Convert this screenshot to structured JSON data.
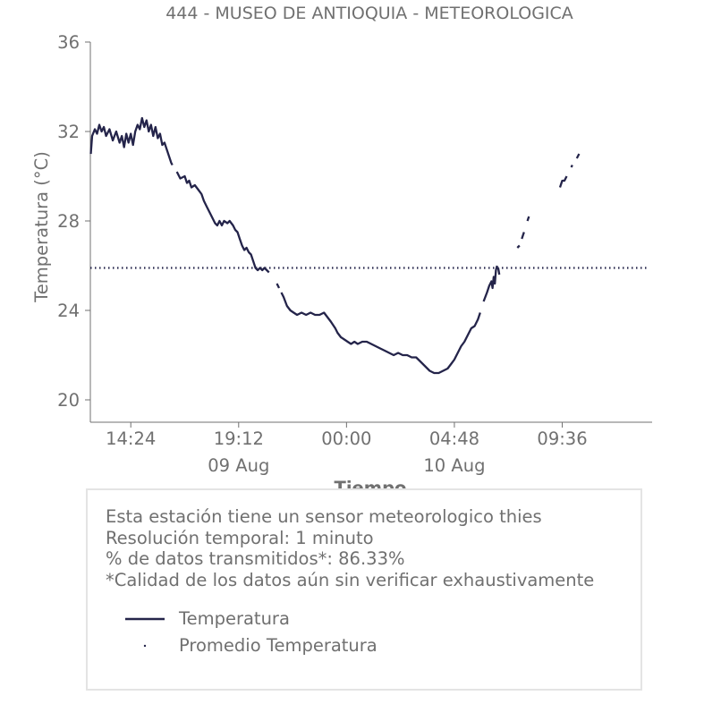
{
  "chart_data": {
    "type": "line",
    "title": "444 - MUSEO DE ANTIOQUIA - METEOROLOGICA",
    "xlabel": "Tiempo",
    "ylabel": "Temperatura (°C)",
    "ylim": [
      19,
      36
    ],
    "xlim_hours": [
      12.6,
      37.6
    ],
    "y_ticks": [
      20,
      24,
      28,
      32,
      36
    ],
    "x_ticks": [
      {
        "hour": 14.4,
        "label": "14:24",
        "date": ""
      },
      {
        "hour": 19.2,
        "label": "19:12",
        "date": "09 Aug"
      },
      {
        "hour": 24.0,
        "label": "00:00",
        "date": ""
      },
      {
        "hour": 28.8,
        "label": "04:48",
        "date": "10 Aug"
      },
      {
        "hour": 33.6,
        "label": "09:36",
        "date": ""
      }
    ],
    "grid": false,
    "colors": {
      "series": "#24244a",
      "text": "#707070",
      "axis": "#707070",
      "box_border": "#e4e4e4"
    },
    "series": [
      {
        "name": "Temperatura",
        "style": "solid",
        "segments": [
          [
            [
              12.62,
              31.0
            ],
            [
              12.68,
              31.8
            ],
            [
              12.8,
              32.1
            ],
            [
              12.9,
              31.9
            ],
            [
              13.0,
              32.3
            ],
            [
              13.1,
              32.0
            ],
            [
              13.2,
              32.2
            ],
            [
              13.3,
              31.8
            ],
            [
              13.45,
              32.1
            ],
            [
              13.6,
              31.6
            ],
            [
              13.75,
              32.0
            ],
            [
              13.9,
              31.5
            ],
            [
              14.0,
              31.8
            ],
            [
              14.1,
              31.3
            ],
            [
              14.2,
              31.9
            ],
            [
              14.3,
              31.5
            ],
            [
              14.4,
              31.9
            ],
            [
              14.5,
              31.4
            ],
            [
              14.6,
              32.0
            ],
            [
              14.7,
              32.3
            ],
            [
              14.8,
              32.1
            ],
            [
              14.9,
              32.6
            ],
            [
              15.0,
              32.2
            ],
            [
              15.1,
              32.5
            ],
            [
              15.2,
              32.0
            ],
            [
              15.3,
              32.3
            ],
            [
              15.4,
              31.8
            ],
            [
              15.5,
              32.2
            ],
            [
              15.6,
              31.7
            ],
            [
              15.7,
              31.9
            ],
            [
              15.8,
              31.4
            ],
            [
              15.9,
              31.5
            ],
            [
              16.0,
              31.2
            ],
            [
              16.1,
              30.9
            ],
            [
              16.2,
              30.6
            ],
            [
              16.25,
              30.5
            ]
          ],
          [
            [
              16.45,
              30.2
            ],
            [
              16.6,
              29.9
            ],
            [
              16.8,
              30.0
            ],
            [
              16.9,
              29.7
            ],
            [
              17.0,
              29.8
            ],
            [
              17.1,
              29.5
            ],
            [
              17.25,
              29.6
            ],
            [
              17.4,
              29.4
            ],
            [
              17.55,
              29.2
            ],
            [
              17.65,
              28.9
            ],
            [
              17.8,
              28.6
            ],
            [
              17.95,
              28.3
            ],
            [
              18.05,
              28.1
            ],
            [
              18.15,
              27.9
            ],
            [
              18.25,
              27.8
            ],
            [
              18.35,
              28.0
            ],
            [
              18.45,
              27.8
            ],
            [
              18.55,
              28.0
            ],
            [
              18.7,
              27.9
            ],
            [
              18.8,
              28.0
            ],
            [
              18.95,
              27.8
            ],
            [
              19.05,
              27.6
            ],
            [
              19.15,
              27.5
            ],
            [
              19.25,
              27.2
            ],
            [
              19.35,
              26.9
            ],
            [
              19.45,
              26.7
            ],
            [
              19.55,
              26.8
            ],
            [
              19.65,
              26.6
            ],
            [
              19.75,
              26.5
            ],
            [
              19.85,
              26.2
            ],
            [
              19.95,
              25.9
            ],
            [
              20.05,
              25.8
            ],
            [
              20.15,
              25.9
            ],
            [
              20.25,
              25.8
            ],
            [
              20.35,
              25.9
            ],
            [
              20.45,
              25.8
            ],
            [
              20.55,
              25.7
            ]
          ],
          [
            [
              20.9,
              25.2
            ],
            [
              21.0,
              25.0
            ]
          ],
          [
            [
              21.1,
              24.8
            ],
            [
              21.2,
              24.6
            ],
            [
              21.35,
              24.2
            ],
            [
              21.5,
              24.0
            ],
            [
              21.65,
              23.9
            ],
            [
              21.8,
              23.8
            ],
            [
              22.0,
              23.9
            ],
            [
              22.2,
              23.8
            ],
            [
              22.4,
              23.9
            ],
            [
              22.6,
              23.8
            ],
            [
              22.8,
              23.8
            ],
            [
              23.0,
              23.9
            ],
            [
              23.15,
              23.7
            ],
            [
              23.3,
              23.5
            ],
            [
              23.5,
              23.2
            ],
            [
              23.6,
              23.0
            ],
            [
              23.75,
              22.8
            ],
            [
              23.9,
              22.7
            ],
            [
              24.05,
              22.6
            ],
            [
              24.2,
              22.5
            ],
            [
              24.35,
              22.6
            ],
            [
              24.5,
              22.5
            ],
            [
              24.7,
              22.6
            ],
            [
              24.9,
              22.6
            ],
            [
              25.1,
              22.5
            ],
            [
              25.3,
              22.4
            ],
            [
              25.5,
              22.3
            ],
            [
              25.7,
              22.2
            ],
            [
              25.9,
              22.1
            ],
            [
              26.1,
              22.0
            ],
            [
              26.3,
              22.1
            ],
            [
              26.5,
              22.0
            ],
            [
              26.7,
              22.0
            ],
            [
              26.9,
              21.9
            ],
            [
              27.1,
              21.9
            ],
            [
              27.3,
              21.7
            ],
            [
              27.5,
              21.5
            ],
            [
              27.7,
              21.3
            ],
            [
              27.9,
              21.2
            ],
            [
              28.1,
              21.2
            ],
            [
              28.3,
              21.3
            ],
            [
              28.5,
              21.4
            ],
            [
              28.65,
              21.6
            ],
            [
              28.8,
              21.8
            ],
            [
              28.95,
              22.1
            ],
            [
              29.1,
              22.4
            ],
            [
              29.25,
              22.6
            ],
            [
              29.4,
              22.9
            ],
            [
              29.55,
              23.2
            ],
            [
              29.7,
              23.3
            ],
            [
              29.85,
              23.6
            ],
            [
              29.95,
              23.9
            ]
          ],
          [
            [
              30.1,
              24.4
            ],
            [
              30.25,
              24.8
            ],
            [
              30.35,
              25.1
            ],
            [
              30.45,
              25.3
            ],
            [
              30.5,
              25.0
            ],
            [
              30.55,
              25.5
            ],
            [
              30.6,
              25.2
            ],
            [
              30.65,
              25.8
            ],
            [
              30.7,
              26.0
            ]
          ],
          [
            [
              30.75,
              25.9
            ],
            [
              30.8,
              25.6
            ]
          ],
          [
            [
              31.6,
              26.8
            ],
            [
              31.7,
              26.9
            ]
          ],
          [
            [
              31.8,
              27.2
            ],
            [
              31.9,
              27.5
            ]
          ],
          [
            [
              32.05,
              28.0
            ],
            [
              32.12,
              28.2
            ]
          ],
          [
            [
              33.5,
              29.5
            ],
            [
              33.6,
              29.8
            ],
            [
              33.7,
              29.8
            ],
            [
              33.8,
              30.0
            ]
          ],
          [
            [
              34.0,
              30.4
            ],
            [
              34.05,
              30.5
            ]
          ],
          [
            [
              34.25,
              30.8
            ],
            [
              34.35,
              31.0
            ]
          ]
        ]
      },
      {
        "name": "Promedio Temperatura",
        "style": "dotted",
        "value": 25.9
      }
    ],
    "legend": {
      "placement": "bottom",
      "entries": [
        "Temperatura",
        "Promedio Temperatura"
      ]
    }
  },
  "info": {
    "lines": [
      "Esta estación tiene un sensor meteorologico thies",
      "Resolución temporal: 1 minuto",
      "% de datos transmitidos*: 86.33%",
      "*Calidad de los datos aún sin verificar exhaustivamente"
    ]
  }
}
